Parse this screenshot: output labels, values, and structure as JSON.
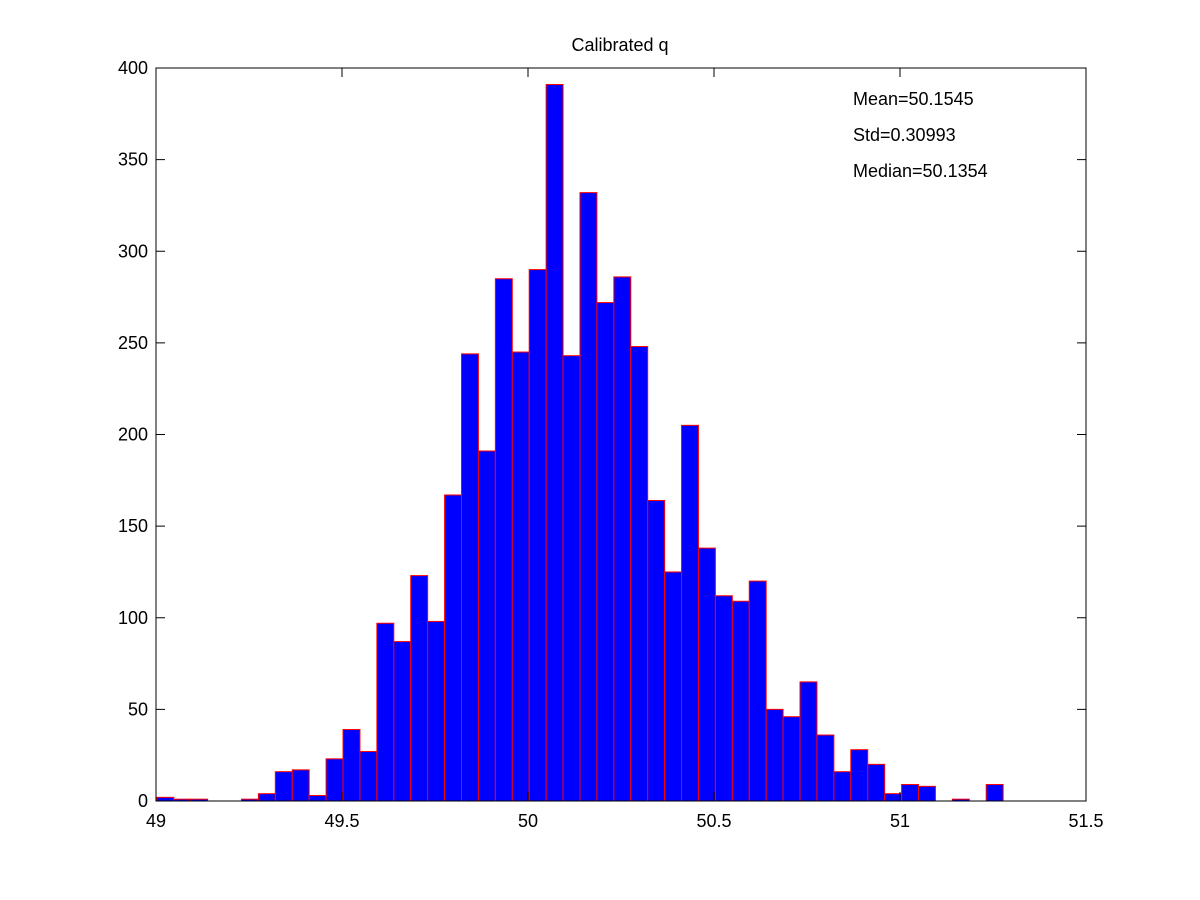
{
  "chart_data": {
    "type": "bar",
    "title": "Calibrated q",
    "xlabel": "",
    "ylabel": "",
    "xlim": [
      49,
      51.5
    ],
    "ylim": [
      0,
      400
    ],
    "x_ticks": [
      49,
      49.5,
      50,
      50.5,
      51,
      51.5
    ],
    "x_tick_labels": [
      "49",
      "49.5",
      "50",
      "50.5",
      "51",
      "51.5"
    ],
    "y_ticks": [
      0,
      50,
      100,
      150,
      200,
      250,
      300,
      350,
      400
    ],
    "y_tick_labels": [
      "0",
      "50",
      "100",
      "150",
      "200",
      "250",
      "300",
      "350",
      "400"
    ],
    "grid": false,
    "bar_fill": "#0000ff",
    "bar_edge": "#ff0000",
    "bin_width": 0.0455,
    "bin_centers": [
      49.025,
      49.0705,
      49.116,
      49.1615,
      49.207,
      49.2525,
      49.298,
      49.3435,
      49.389,
      49.4345,
      49.48,
      49.5255,
      49.571,
      49.6165,
      49.662,
      49.7075,
      49.753,
      49.7985,
      49.844,
      49.8895,
      49.935,
      49.9805,
      50.026,
      50.0715,
      50.117,
      50.1625,
      50.208,
      50.2535,
      50.299,
      50.3445,
      50.39,
      50.4355,
      50.481,
      50.5265,
      50.572,
      50.6175,
      50.663,
      50.7085,
      50.754,
      50.7995,
      50.845,
      50.8905,
      50.936,
      50.9815,
      51.027,
      51.0725,
      51.118,
      51.1635,
      51.209,
      51.2545
    ],
    "values": [
      2,
      1,
      1,
      0,
      0,
      1,
      4,
      16,
      17,
      3,
      23,
      39,
      27,
      97,
      87,
      123,
      98,
      167,
      244,
      191,
      285,
      245,
      290,
      391,
      243,
      332,
      272,
      286,
      248,
      164,
      125,
      205,
      138,
      112,
      109,
      120,
      50,
      46,
      65,
      36,
      16,
      28,
      20,
      4,
      9,
      8,
      0,
      1,
      0,
      9
    ],
    "annotations": [
      "Mean=50.1545",
      "Std=0.30993",
      "Median=50.1354"
    ]
  }
}
